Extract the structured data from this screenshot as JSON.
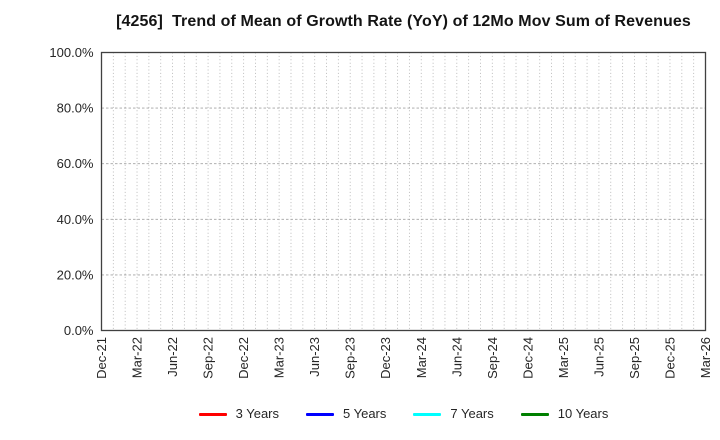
{
  "chart_data": {
    "type": "line",
    "title": "[4256]  Trend of Mean of Growth Rate (YoY) of 12Mo Mov Sum of Revenues",
    "x_axis": {
      "tick_labels": [
        "Dec-21",
        "Mar-22",
        "Jun-22",
        "Sep-22",
        "Dec-22",
        "Mar-23",
        "Jun-23",
        "Sep-23",
        "Dec-23",
        "Mar-24",
        "Jun-24",
        "Sep-24",
        "Dec-24",
        "Mar-25",
        "Jun-25",
        "Sep-25",
        "Dec-25",
        "Mar-26"
      ],
      "tick_interval_months": 3,
      "gridline_interval_months": 1,
      "total_month_intervals": 51,
      "label_rotation_degrees": 90
    },
    "y_axis": {
      "tick_values": [
        0,
        20,
        40,
        60,
        80,
        100
      ],
      "tick_labels": [
        "0.0%",
        "20.0%",
        "40.0%",
        "60.0%",
        "80.0%",
        "100.0%"
      ],
      "range": [
        0,
        100
      ],
      "unit": "%"
    },
    "grid": {
      "show": true,
      "vertical_color": "#b5b5b5",
      "horizontal_color": "#a3a3a3"
    },
    "frame_color": "#404040",
    "text_color": "#262626",
    "title_color": "#141414",
    "legend": {
      "position": "bottom-center",
      "entries": [
        {
          "label": "3 Years",
          "color": "#ff0000"
        },
        {
          "label": "5 Years",
          "color": "#0000ff"
        },
        {
          "label": "7 Years",
          "color": "#00ffff"
        },
        {
          "label": "10 Years",
          "color": "#008000"
        }
      ]
    },
    "series": [
      {
        "name": "3 Years",
        "color": "#ff0000",
        "values": []
      },
      {
        "name": "5 Years",
        "color": "#0000ff",
        "values": []
      },
      {
        "name": "7 Years",
        "color": "#00ffff",
        "values": []
      },
      {
        "name": "10 Years",
        "color": "#008000",
        "values": []
      }
    ]
  }
}
